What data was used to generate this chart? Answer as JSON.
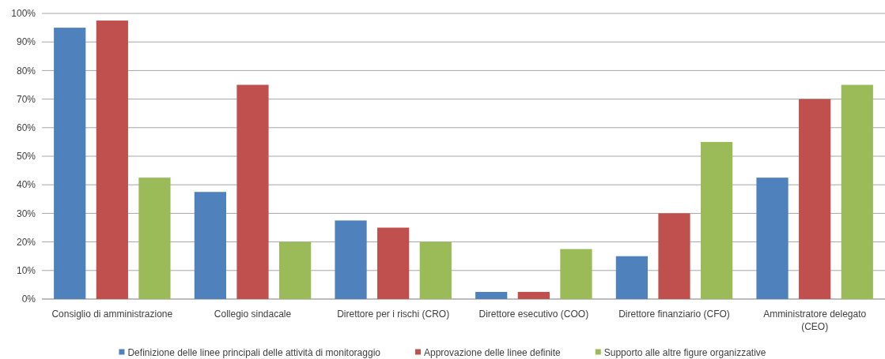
{
  "chart_data": {
    "type": "bar",
    "categories": [
      "Consiglio di amministrazione",
      "Collegio sindacale",
      "Direttore per i rischi (CRO)",
      "Direttore esecutivo (COO)",
      "Direttore finanziario (CFO)",
      "Amministratore delegato (CEO)"
    ],
    "series": [
      {
        "name": "Definizione delle linee principali delle attività di monitoraggio",
        "color": "#4f81bd",
        "values": [
          95,
          37.5,
          27.5,
          2.5,
          15,
          42.5
        ]
      },
      {
        "name": "Approvazione delle linee definite",
        "color": "#c0504d",
        "values": [
          97.5,
          75,
          25,
          2.5,
          30,
          70
        ]
      },
      {
        "name": "Supporto alle altre figure organizzative",
        "color": "#9bbb59",
        "values": [
          42.5,
          20,
          20,
          17.5,
          55,
          75
        ]
      }
    ],
    "ylim": [
      0,
      100
    ],
    "yticks": [
      {
        "value": 0,
        "label": "0%"
      },
      {
        "value": 10,
        "label": "10%"
      },
      {
        "value": 20,
        "label": "20%"
      },
      {
        "value": 30,
        "label": "30%"
      },
      {
        "value": 40,
        "label": "40%"
      },
      {
        "value": 50,
        "label": "50%"
      },
      {
        "value": 60,
        "label": "60%"
      },
      {
        "value": 70,
        "label": "70%"
      },
      {
        "value": 80,
        "label": "80%"
      },
      {
        "value": 90,
        "label": "90%"
      },
      {
        "value": 100,
        "label": "100%"
      }
    ],
    "grid": "y",
    "legend": "bottom"
  }
}
